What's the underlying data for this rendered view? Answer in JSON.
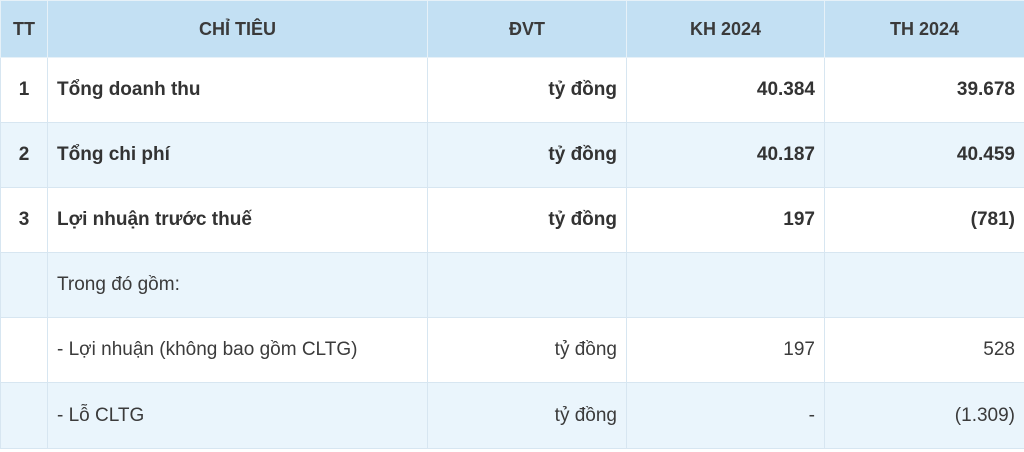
{
  "table": {
    "headers": {
      "tt": "TT",
      "chi_tieu": "CHỈ TIÊU",
      "dvt": "ĐVT",
      "kh": "KH 2024",
      "th": "TH 2024"
    },
    "rows": [
      {
        "tt": "1",
        "chi_tieu": "Tổng doanh thu",
        "dvt": "tỷ đồng",
        "kh": "40.384",
        "th": "39.678"
      },
      {
        "tt": "2",
        "chi_tieu": "Tổng chi phí",
        "dvt": "tỷ đồng",
        "kh": "40.187",
        "th": "40.459"
      },
      {
        "tt": "3",
        "chi_tieu": "Lợi nhuận trước thuế",
        "dvt": "tỷ đồng",
        "kh": "197",
        "th": "(781)"
      },
      {
        "tt": "",
        "chi_tieu": "Trong đó gồm:",
        "dvt": "",
        "kh": "",
        "th": ""
      },
      {
        "tt": "",
        "chi_tieu": "- Lợi nhuận (không bao gồm CLTG)",
        "dvt": "tỷ đồng",
        "kh": "197",
        "th": "528"
      },
      {
        "tt": "",
        "chi_tieu": "- Lỗ CLTG",
        "dvt": "tỷ đồng",
        "kh": "-",
        "th": "(1.309)"
      }
    ]
  }
}
